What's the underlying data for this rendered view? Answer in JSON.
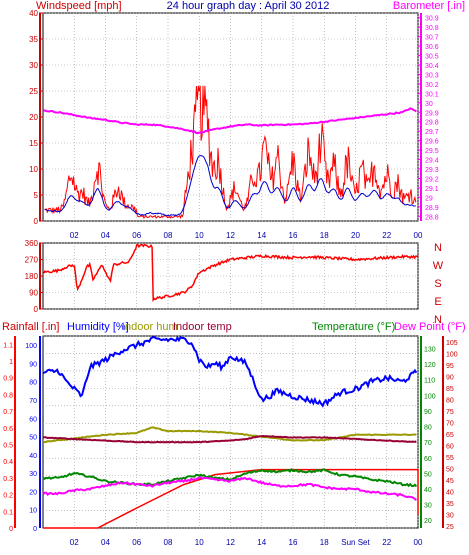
{
  "header": {
    "windspeed_label": "Windspeed [mph]",
    "title": "24 hour graph day : April 30 2012",
    "barometer_label": "Barometer [.in]"
  },
  "bottom_header": {
    "rainfall_label": "Rainfall [.in]",
    "humidity_label": "Humidity [%]",
    "indoor_hum_label": "Indoor hum",
    "indoor_temp_label": "Indoor temp",
    "temperature_label": "Temperature (°F)",
    "dewpoint_label": "Dew Point (°F)"
  },
  "colors": {
    "wind_axis": "#cc0000",
    "wind_gust": "#ff0000",
    "wind_avg": "#0000cc",
    "barometer": "#ff00ff",
    "direction": "#ff0000",
    "rain": "#ff0000",
    "humidity": "#0000ff",
    "indoor_hum": "#999900",
    "indoor_temp": "#990033",
    "temperature": "#008800",
    "dewpoint": "#ff00ff",
    "grid": "#999999"
  },
  "chart_data": [
    {
      "type": "line",
      "name": "wind-barometer",
      "x_tick_labels": [
        "02",
        "04",
        "06",
        "08",
        "10",
        "12",
        "14",
        "16",
        "18",
        "20",
        "22",
        "00"
      ],
      "y_left_ticks": [
        "40",
        "35",
        "30",
        "25",
        "20",
        "15",
        "10",
        "5",
        "0"
      ],
      "ylim_left": [
        0,
        40
      ],
      "y_right_ticks": [
        "30.9",
        "30.8",
        "30.7",
        "30.6",
        "30.5",
        "30.4",
        "30.3",
        "30.2",
        "30.1",
        "30",
        "29.9",
        "29.8",
        "29.7",
        "29.6",
        "29.5",
        "29.4",
        "29.3",
        "29.2",
        "29.1",
        "29",
        "28.9",
        "28.8"
      ],
      "ylim_right": [
        28.75,
        30.95
      ],
      "barometer_x": [
        0,
        1,
        2,
        3,
        4,
        5,
        6,
        7,
        8,
        9,
        10,
        11,
        12,
        13,
        14,
        15,
        16,
        17,
        18,
        19,
        20,
        21,
        22,
        23,
        23.5,
        24
      ],
      "barometer": [
        29.92,
        29.9,
        29.87,
        29.84,
        29.82,
        29.79,
        29.77,
        29.77,
        29.75,
        29.72,
        29.68,
        29.72,
        29.75,
        29.77,
        29.76,
        29.77,
        29.77,
        29.78,
        29.8,
        29.82,
        29.84,
        29.86,
        29.88,
        29.9,
        29.94,
        29.9
      ],
      "gust_peaks_x": [
        1.8,
        2.5,
        3.5,
        4.8,
        5.5,
        9.5,
        10.0,
        10.5,
        11.2,
        12.3,
        13.5,
        14.2,
        15.0,
        16.0,
        17.0,
        17.8,
        18.6,
        19.5,
        20.4,
        21.2,
        22.0,
        22.7,
        23.5
      ],
      "gust_peaks": [
        12,
        8,
        14,
        9,
        5,
        15,
        25,
        22,
        15,
        9,
        12,
        18,
        16,
        15,
        17,
        19,
        14,
        15,
        13,
        14,
        12,
        10,
        8
      ]
    },
    {
      "type": "line",
      "name": "wind-direction",
      "y_ticks": [
        "360",
        "270",
        "180",
        "90",
        "0"
      ],
      "ylim": [
        0,
        360
      ],
      "compass_labels": [
        "N",
        "W",
        "S",
        "E",
        "N"
      ],
      "x": [
        0,
        1,
        1.5,
        2,
        2.2,
        2.8,
        3,
        3.2,
        3.8,
        4,
        4.3,
        4.5,
        5,
        5.5,
        6,
        6.6,
        7,
        7.05,
        8,
        9,
        9.5,
        10,
        10.5,
        11,
        12,
        13,
        14,
        15,
        16,
        17,
        18,
        19,
        20,
        21,
        22,
        23,
        24
      ],
      "y": [
        200,
        210,
        230,
        240,
        100,
        230,
        240,
        160,
        245,
        200,
        150,
        240,
        250,
        255,
        345,
        345,
        340,
        55,
        70,
        90,
        120,
        200,
        220,
        240,
        270,
        280,
        290,
        285,
        280,
        285,
        280,
        275,
        270,
        275,
        280,
        285,
        285
      ]
    },
    {
      "type": "line",
      "name": "rain-humidity-temperature",
      "x_tick_labels": [
        "02",
        "04",
        "06",
        "08",
        "10",
        "12",
        "14",
        "16",
        "18",
        "Sun Set",
        "22",
        "00"
      ],
      "rain_ticks": [
        "1.1",
        "1",
        "0.9",
        "0.8",
        "0.7",
        "0.6",
        "0.5",
        "0.4",
        "0.3",
        "0.2",
        "0.1",
        "0"
      ],
      "rain_ylim": [
        0,
        1.15
      ],
      "humidity_ticks": [
        "100",
        "90",
        "80",
        "70",
        "60",
        "50",
        "40",
        "30",
        "20",
        "10",
        "0"
      ],
      "humidity_ylim": [
        0,
        105
      ],
      "temperature_ticks": [
        "130",
        "120",
        "110",
        "100",
        "90",
        "80",
        "70",
        "60",
        "50",
        "40",
        "30",
        "20"
      ],
      "temperature_ylim": [
        15,
        138
      ],
      "dewpoint_ticks": [
        "105",
        "100",
        "95",
        "90",
        "85",
        "80",
        "75",
        "70",
        "65",
        "60",
        "55",
        "50",
        "45",
        "40",
        "35",
        "30",
        "25"
      ],
      "series": [
        {
          "name": "Rainfall",
          "x": [
            0,
            3.5,
            6,
            9,
            11,
            13,
            14,
            17,
            24,
            24
          ],
          "y": [
            0,
            0,
            0.12,
            0.26,
            0.32,
            0.34,
            0.35,
            0.35,
            0.35,
            0.08
          ]
        },
        {
          "name": "Humidity",
          "x": [
            0,
            1,
            1.5,
            2,
            2.5,
            3,
            4,
            5,
            6,
            7,
            8,
            9,
            9.5,
            10,
            10.5,
            11,
            11.5,
            12,
            12.5,
            13,
            13.5,
            14,
            14.5,
            15,
            16,
            17,
            18,
            19,
            20,
            21,
            22,
            23,
            24
          ],
          "y": [
            85,
            86,
            80,
            76,
            72,
            88,
            92,
            97,
            100,
            103,
            103,
            103,
            102,
            92,
            88,
            90,
            88,
            94,
            92,
            90,
            80,
            70,
            72,
            75,
            72,
            70,
            68,
            74,
            76,
            80,
            82,
            80,
            86
          ]
        },
        {
          "name": "Indoor hum",
          "x": [
            0,
            2,
            4,
            6,
            7,
            8,
            10,
            12,
            14,
            16,
            18,
            20,
            22,
            24
          ],
          "y": [
            47,
            49,
            51,
            52,
            55,
            53,
            53,
            52,
            50,
            48,
            48,
            51,
            51,
            51
          ]
        },
        {
          "name": "Indoor temp",
          "x": [
            0,
            2,
            4,
            6,
            8,
            10,
            12,
            13,
            14,
            16,
            18,
            20,
            22,
            24
          ],
          "y": [
            73,
            72,
            71,
            70,
            70,
            70,
            71,
            72,
            74,
            73,
            73,
            72,
            71,
            70
          ]
        },
        {
          "name": "Temperature",
          "x": [
            0,
            1,
            2,
            3,
            4,
            5,
            6,
            7,
            8,
            9,
            10,
            11,
            12,
            13,
            14,
            15,
            16,
            17,
            18,
            19,
            20,
            21,
            22,
            23,
            24
          ],
          "y": [
            47,
            47,
            50,
            48,
            45,
            44,
            43,
            43,
            45,
            47,
            49,
            47,
            46,
            50,
            52,
            51,
            52,
            51,
            52,
            49,
            48,
            46,
            45,
            43,
            42
          ]
        },
        {
          "name": "Dew Point",
          "x": [
            0,
            1,
            2,
            3,
            4,
            5,
            6,
            7,
            8,
            9,
            10,
            11,
            12,
            13,
            14,
            15,
            16,
            17,
            18,
            19,
            20,
            21,
            22,
            23,
            24
          ],
          "y": [
            37,
            37,
            39,
            40,
            42,
            44,
            43,
            42,
            44,
            45,
            47,
            46,
            45,
            47,
            44,
            42,
            42,
            43,
            41,
            40,
            40,
            38,
            37,
            36,
            33
          ]
        }
      ]
    }
  ]
}
